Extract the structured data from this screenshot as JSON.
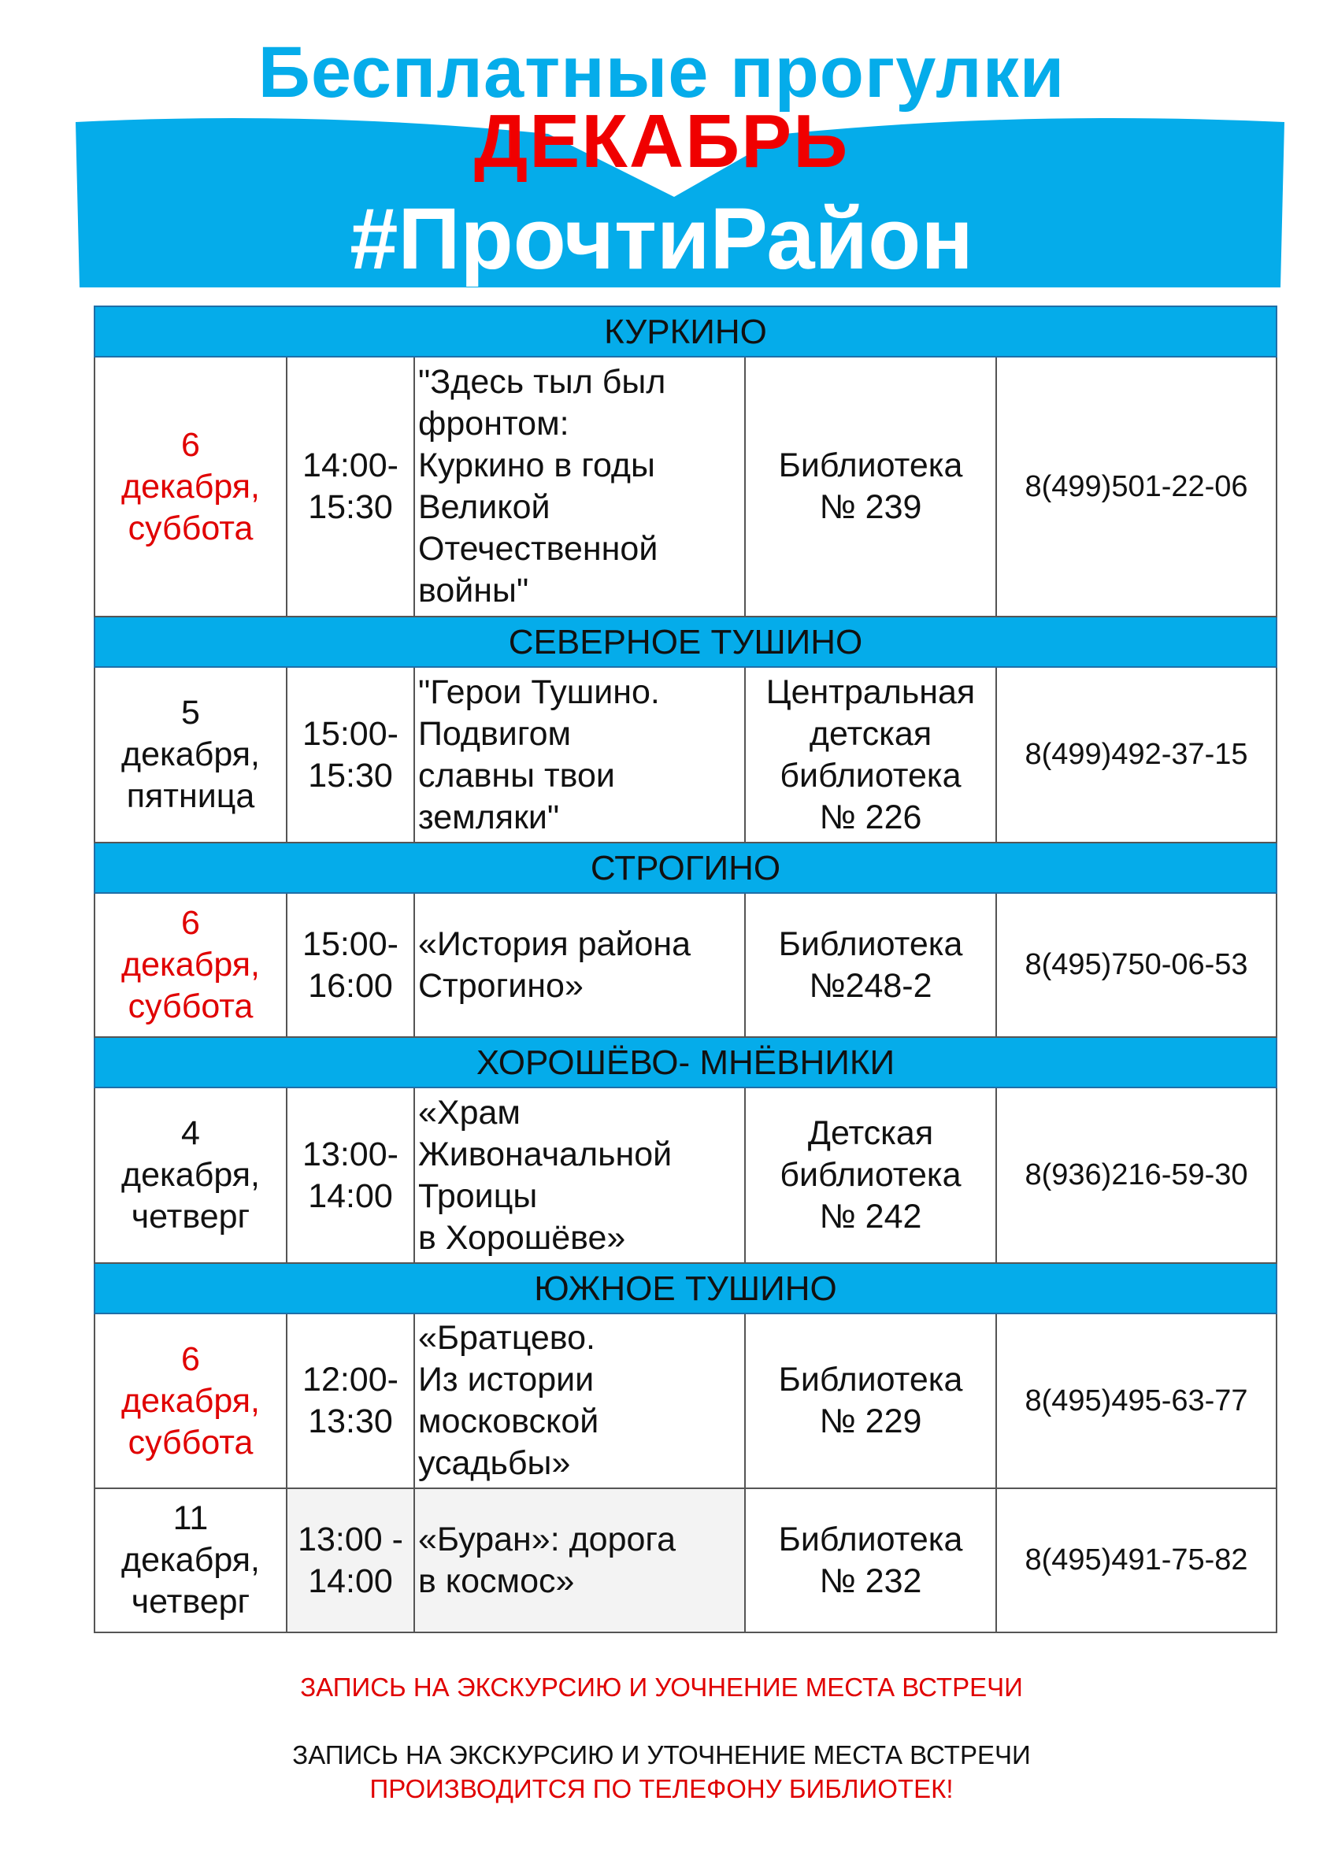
{
  "header": {
    "title": "Бесплатные прогулки",
    "month": "ДЕКАБРЬ",
    "hashtag": "#ПрочтиРайон"
  },
  "colors": {
    "accent": "#05acea",
    "red": "#e00000"
  },
  "sections": [
    {
      "district": "КУРКИНО",
      "events": [
        {
          "date": [
            "6",
            "декабря,",
            "суббота"
          ],
          "highlight": true,
          "time": [
            "14:00-",
            "15:30"
          ],
          "topic": [
            "\"Здесь тыл был",
            "фронтом:",
            "Куркино в годы",
            "Великой",
            "Отечественной",
            "войны\""
          ],
          "place": [
            "Библиотека",
            "№ 239"
          ],
          "phone": "8(499)501-22-06"
        }
      ]
    },
    {
      "district": "СЕВЕРНОЕ ТУШИНО",
      "events": [
        {
          "date": [
            "5",
            "декабря,",
            "пятница"
          ],
          "highlight": false,
          "time": [
            "15:00-",
            "15:30"
          ],
          "topic": [
            "\"Герои Тушино.",
            "Подвигом",
            "славны твои",
            "земляки\""
          ],
          "place": [
            "Центральная",
            "детская",
            "библиотека",
            "№ 226"
          ],
          "phone": "8(499)492-37-15"
        }
      ]
    },
    {
      "district": "СТРОГИНО",
      "events": [
        {
          "date": [
            "6",
            "декабря,",
            "суббота"
          ],
          "highlight": true,
          "time": [
            "15:00-",
            "16:00"
          ],
          "topic": [
            "«История района",
            "Строгино»"
          ],
          "place": [
            "Библиотека",
            "№248-2"
          ],
          "phone": "8(495)750-06-53"
        }
      ]
    },
    {
      "district": "ХОРОШЁВО- МНЁВНИКИ",
      "events": [
        {
          "date": [
            "4",
            "декабря,",
            "четверг"
          ],
          "highlight": false,
          "time": [
            "13:00-",
            "14:00"
          ],
          "topic": [
            "«Храм",
            "Живоначальной",
            "Троицы",
            "в Хорошёве»"
          ],
          "place": [
            "Детская",
            "библиотека",
            "№ 242"
          ],
          "phone": "8(936)216-59-30"
        }
      ]
    },
    {
      "district": "ЮЖНОЕ ТУШИНО",
      "events": [
        {
          "date": [
            "6",
            "декабря,",
            "суббота"
          ],
          "highlight": true,
          "time": [
            "12:00-",
            "13:30"
          ],
          "topic": [
            "«Братцево.",
            "Из истории",
            "московской",
            "усадьбы»"
          ],
          "place": [
            "Библиотека",
            "№ 229"
          ],
          "phone": "8(495)495-63-77"
        },
        {
          "date": [
            "11",
            "декабря,",
            "четверг"
          ],
          "highlight": false,
          "shaded": true,
          "time": [
            "13:00 -",
            "14:00"
          ],
          "topic": [
            " «Буран»: дорога",
            "в космос»"
          ],
          "place": [
            "Библиотека",
            "№ 232"
          ],
          "phone": "8(495)491-75-82"
        }
      ]
    }
  ],
  "footer": {
    "note_red": "ЗАПИСЬ НА ЭКСКУРСИЮ И УОЧНЕНИЕ МЕСТА ВСТРЕЧИ",
    "note_black": "ЗАПИСЬ НА ЭКСКУРСИЮ И УТОЧНЕНИЕ МЕСТА ВСТРЕЧИ",
    "note_red2": "ПРОИЗВОДИТСЯ ПО ТЕЛЕФОНУ БИБЛИОТЕК!"
  }
}
